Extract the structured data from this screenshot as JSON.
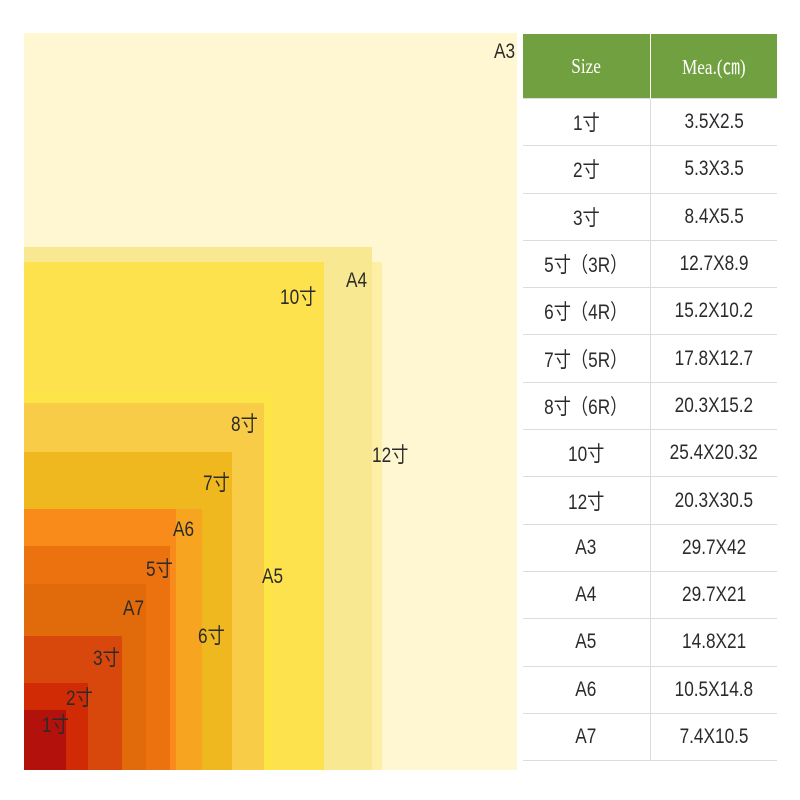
{
  "rect_labels": {
    "a3": "A3",
    "a4": "A4",
    "a5": "A5",
    "a6": "A6",
    "a7": "A7",
    "r12": "12寸",
    "r10": "10寸",
    "r8": "8寸",
    "r7": "7寸",
    "r6": "6寸",
    "r5": "5寸",
    "r3": "3寸",
    "r2": "2寸",
    "r1": "1寸"
  },
  "table": {
    "header_size": "Size",
    "header_mea": "Mea.(㎝)",
    "rows": [
      {
        "size": "1寸",
        "mea": "3.5X2.5"
      },
      {
        "size": "2寸",
        "mea": "5.3X3.5"
      },
      {
        "size": "3寸",
        "mea": "8.4X5.5"
      },
      {
        "size": "5寸（3R）",
        "mea": "12.7X8.9"
      },
      {
        "size": "6寸（4R）",
        "mea": "15.2X10.2"
      },
      {
        "size": "7寸（5R）",
        "mea": "17.8X12.7"
      },
      {
        "size": "8寸（6R）",
        "mea": "20.3X15.2"
      },
      {
        "size": "10寸",
        "mea": "25.4X20.32"
      },
      {
        "size": "12寸",
        "mea": "20.3X30.5"
      },
      {
        "size": "A3",
        "mea": "29.7X42"
      },
      {
        "size": "A4",
        "mea": "29.7X21"
      },
      {
        "size": "A5",
        "mea": "14.8X21"
      },
      {
        "size": "A6",
        "mea": "10.5X14.8"
      },
      {
        "size": "A7",
        "mea": "7.4X10.5"
      }
    ]
  },
  "colors": {
    "header_bg": "#71a040",
    "a3": "#fff7d2",
    "r12": "#fdf0a6",
    "a4": "#f8e891",
    "r10": "#fde24d",
    "a5": "#fde548",
    "r8": "#f9cc47",
    "r7": "#efb81f",
    "r6": "#f7a420",
    "a6": "#f98b1b",
    "r5": "#ec7210",
    "a7": "#e16a0a",
    "r3": "#d8480d",
    "r2": "#d12b06",
    "r1": "#b3110b"
  }
}
